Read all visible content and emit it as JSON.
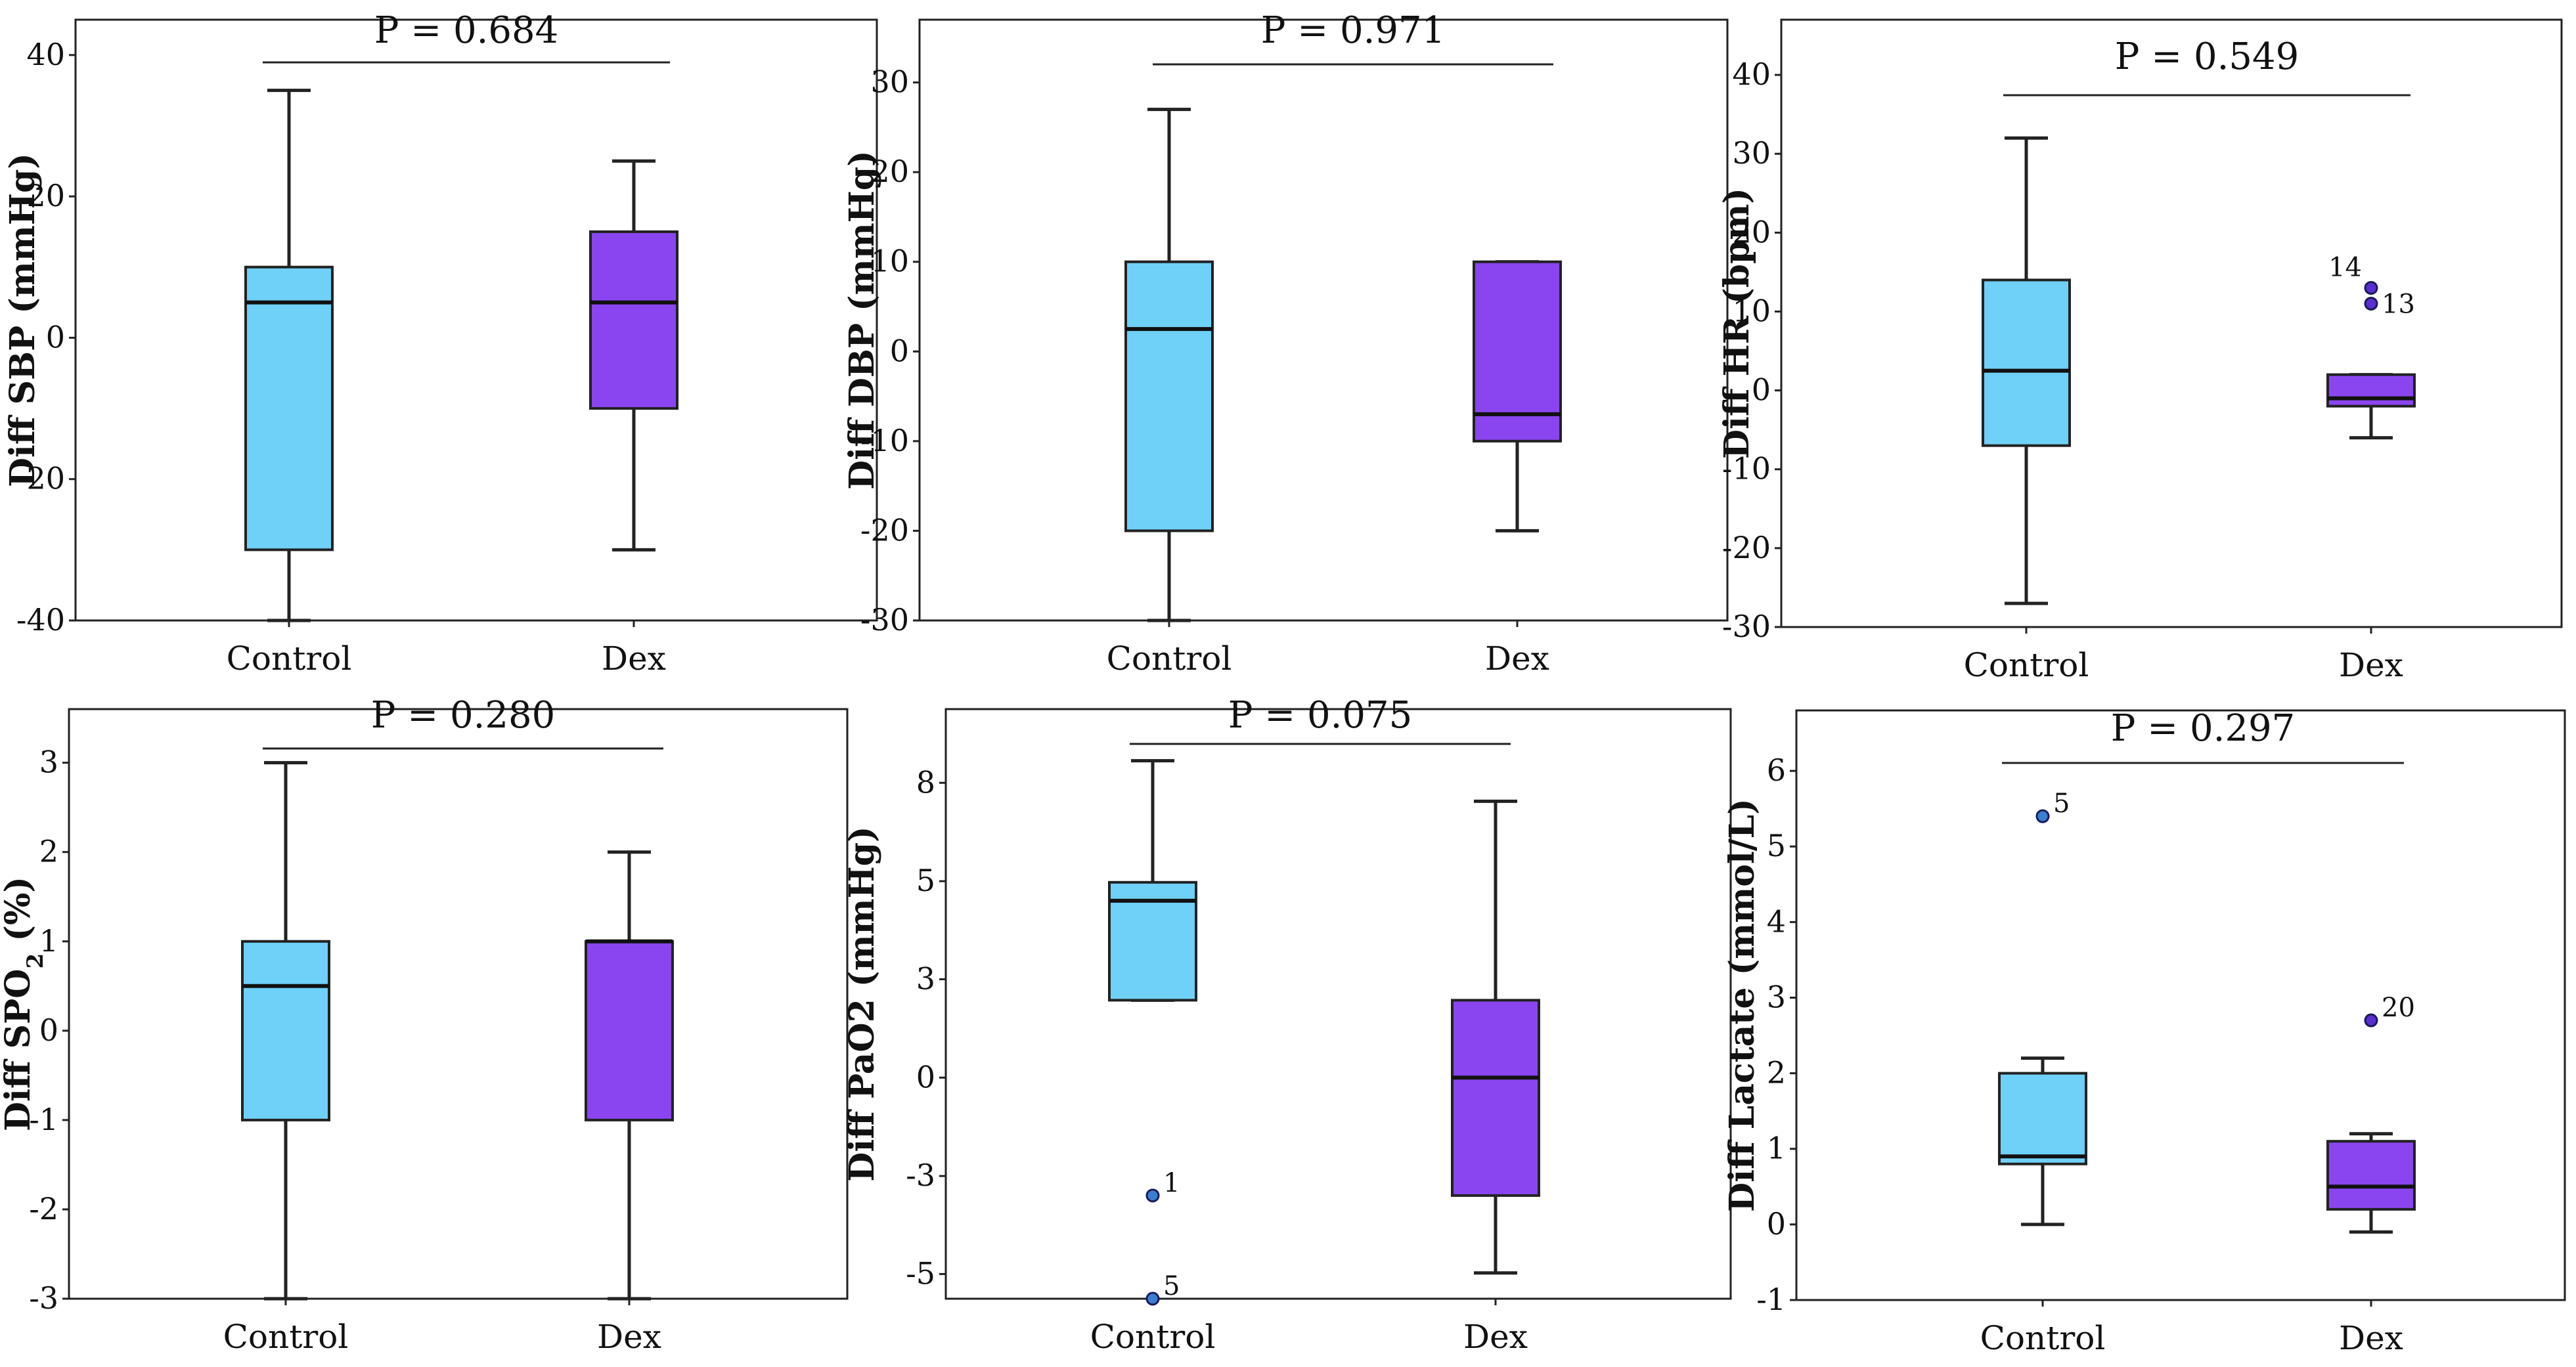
{
  "colors": {
    "control": "#6fd0f8",
    "dex": "#8a45f0",
    "outlier_control": "#3a7fd0",
    "outlier_dex": "#5a2fd0"
  },
  "chart_data": [
    {
      "type": "boxplot",
      "ylabel": "Diff SBP (mmHg)",
      "ylim": [
        -40,
        45
      ],
      "yticks": [
        {
          "v": 40,
          "l": "40"
        },
        {
          "v": 20,
          "l": "20"
        },
        {
          "v": 0,
          "l": "0"
        },
        {
          "v": -20,
          "l": "-20"
        },
        {
          "v": -40,
          "l": "-40"
        }
      ],
      "categories": [
        "Control",
        "Dex"
      ],
      "p_text": "P = 0.684",
      "groups": [
        {
          "name": "Control",
          "whisker_low": -40,
          "q1": -30,
          "median": 5,
          "q3": 10,
          "whisker_high": 35,
          "outliers": []
        },
        {
          "name": "Dex",
          "whisker_low": -30,
          "q1": -10,
          "median": 5,
          "q3": 15,
          "whisker_high": 25,
          "outliers": []
        }
      ]
    },
    {
      "type": "boxplot",
      "ylabel": "Diff DBP (mmHg)",
      "ylim": [
        -30,
        37
      ],
      "yticks": [
        {
          "v": 30,
          "l": "30"
        },
        {
          "v": 20,
          "l": "20"
        },
        {
          "v": 10,
          "l": "10"
        },
        {
          "v": 0,
          "l": "0"
        },
        {
          "v": -10,
          "l": "-10"
        },
        {
          "v": -20,
          "l": "-20"
        },
        {
          "v": -30,
          "l": "-30"
        }
      ],
      "categories": [
        "Control",
        "Dex"
      ],
      "p_text": "P = 0.971",
      "groups": [
        {
          "name": "Control",
          "whisker_low": -30,
          "q1": -20,
          "median": 2.5,
          "q3": 10,
          "whisker_high": 27,
          "outliers": []
        },
        {
          "name": "Dex",
          "whisker_low": -20,
          "q1": -10,
          "median": -7,
          "q3": 10,
          "whisker_high": 10,
          "outliers": []
        }
      ]
    },
    {
      "type": "boxplot",
      "ylabel": "Diff HR (bpm)",
      "ylim": [
        -30,
        47
      ],
      "yticks": [
        {
          "v": 40,
          "l": "40"
        },
        {
          "v": 30,
          "l": "30"
        },
        {
          "v": 20,
          "l": "20"
        },
        {
          "v": 10,
          "l": "10"
        },
        {
          "v": 0,
          "l": "0"
        },
        {
          "v": -10,
          "l": "-10"
        },
        {
          "v": -20,
          "l": "-20"
        },
        {
          "v": -30,
          "l": "-30"
        }
      ],
      "categories": [
        "Control",
        "Dex"
      ],
      "p_text": "P = 0.549",
      "groups": [
        {
          "name": "Control",
          "whisker_low": -27,
          "q1": -7,
          "median": 2.5,
          "q3": 14,
          "whisker_high": 32,
          "outliers": []
        },
        {
          "name": "Dex",
          "whisker_low": -6,
          "q1": -2,
          "median": -1,
          "q3": 2,
          "whisker_high": 2,
          "outliers": [
            {
              "value": 13,
              "label": "14"
            },
            {
              "value": 11,
              "label": "13"
            }
          ]
        }
      ]
    },
    {
      "type": "boxplot",
      "ylabel": "Diff SPO",
      "ylabel_sub": "2",
      "ylabel_tail": " (%)",
      "ylim": [
        -3,
        3.6
      ],
      "yticks": [
        {
          "v": 3,
          "l": "3"
        },
        {
          "v": 2,
          "l": "2"
        },
        {
          "v": 1,
          "l": "1"
        },
        {
          "v": 0,
          "l": "0"
        },
        {
          "v": -1,
          "l": "-1"
        },
        {
          "v": -2,
          "l": "-2"
        },
        {
          "v": -3,
          "l": "-3"
        }
      ],
      "categories": [
        "Control",
        "Dex"
      ],
      "p_text": "P = 0.280",
      "groups": [
        {
          "name": "Control",
          "whisker_low": -3,
          "q1": -1,
          "median": 0.5,
          "q3": 1,
          "whisker_high": 3,
          "outliers": []
        },
        {
          "name": "Dex",
          "whisker_low": -3,
          "q1": -1,
          "median": 1,
          "q3": 1,
          "whisker_high": 2,
          "outliers": []
        }
      ]
    },
    {
      "type": "boxplot",
      "ylabel": "Diff PaO2 (mmHg)",
      "ylim": [
        -6,
        10
      ],
      "yticks": [
        {
          "v": 8,
          "l": "8"
        },
        {
          "v": 5.33,
          "l": "5"
        },
        {
          "v": 2.67,
          "l": "3"
        },
        {
          "v": 0,
          "l": "0"
        },
        {
          "v": -2.67,
          "l": "-3"
        },
        {
          "v": -5.33,
          "l": "-5"
        }
      ],
      "categories": [
        "Control",
        "Dex"
      ],
      "p_text": "P = 0.075",
      "groups": [
        {
          "name": "Control",
          "whisker_low": 2.1,
          "q1": 2.1,
          "median": 4.8,
          "q3": 5.3,
          "whisker_high": 8.6,
          "outliers": [
            {
              "value": -3.2,
              "label": "1"
            },
            {
              "value": -6.0,
              "label": "5"
            }
          ]
        },
        {
          "name": "Dex",
          "whisker_low": -5.3,
          "q1": -3.2,
          "median": 0,
          "q3": 2.1,
          "whisker_high": 7.5,
          "outliers": []
        }
      ]
    },
    {
      "type": "boxplot",
      "ylabel": "Diff Lactate (mmol/L)",
      "ylim": [
        -1,
        6.8
      ],
      "yticks": [
        {
          "v": 6,
          "l": "6"
        },
        {
          "v": 5,
          "l": "5"
        },
        {
          "v": 4,
          "l": "4"
        },
        {
          "v": 3,
          "l": "3"
        },
        {
          "v": 2,
          "l": "2"
        },
        {
          "v": 1,
          "l": "1"
        },
        {
          "v": 0,
          "l": "0"
        },
        {
          "v": -1,
          "l": "-1"
        }
      ],
      "categories": [
        "Control",
        "Dex"
      ],
      "p_text": "P = 0.297",
      "groups": [
        {
          "name": "Control",
          "whisker_low": 0,
          "q1": 0.8,
          "median": 0.9,
          "q3": 2,
          "whisker_high": 2.2,
          "outliers": [
            {
              "value": 5.4,
              "label": "5"
            }
          ]
        },
        {
          "name": "Dex",
          "whisker_low": -0.1,
          "q1": 0.2,
          "median": 0.5,
          "q3": 1.1,
          "whisker_high": 1.2,
          "outliers": [
            {
              "value": 2.7,
              "label": "20"
            }
          ]
        }
      ]
    }
  ]
}
